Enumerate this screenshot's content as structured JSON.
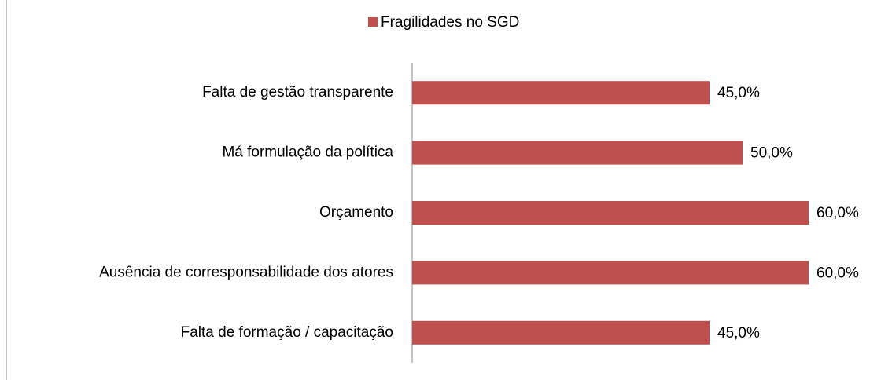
{
  "chart_data": {
    "type": "hbar",
    "categories": [
      "Falta de gestão transparente",
      "Má formulação da política",
      "Orçamento",
      "Ausência de corresponsabilidade dos atores",
      "Falta de formação / capacitação"
    ],
    "series": [
      {
        "name": "Fragilidades no SGD",
        "color": "#c0504d",
        "values": [
          45,
          50,
          60,
          60,
          45
        ],
        "value_labels": [
          "45,0%",
          "50,0%",
          "60,0%",
          "60,0%",
          "45,0%"
        ]
      }
    ],
    "xlim": [
      0,
      60
    ],
    "legend": "top"
  }
}
